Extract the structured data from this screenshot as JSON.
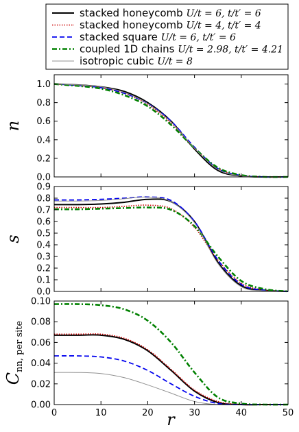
{
  "chart_data": {
    "type": "line",
    "legend": {
      "placement": "top",
      "entries": [
        {
          "text": "stacked honeycomb",
          "math": "U/t = 6, t/t′ = 6",
          "color": "#000000",
          "style": "solid"
        },
        {
          "text": "stacked honeycomb",
          "math": "U/t = 4, t/t′ = 4",
          "color": "#cc0000",
          "style": "dotted"
        },
        {
          "text": "stacked square",
          "math": "U/t = 6, t/t′ = 6",
          "color": "#0000ee",
          "style": "dashed"
        },
        {
          "text": "coupled 1D chains",
          "math": "U/t = 2.98, t/t′ = 4.21",
          "color": "#008000",
          "style": "dashdot"
        },
        {
          "text": "isotropic cubic",
          "math": "U/t = 8",
          "color": "#909090",
          "style": "thin"
        }
      ]
    },
    "xlabel": "r",
    "xlim": [
      0,
      50
    ],
    "xticks": [
      "0",
      "10",
      "20",
      "30",
      "40",
      "50"
    ],
    "panels": [
      {
        "ylabel": "n",
        "ylabel_sub": "",
        "ylim": [
          0,
          1.1
        ],
        "yticks": [
          "0.0",
          "0.2",
          "0.4",
          "0.6",
          "0.8",
          "1.0"
        ],
        "x": [
          0,
          5,
          10,
          15,
          20,
          25,
          30,
          35,
          40,
          45,
          50
        ],
        "series": [
          {
            "name": "stacked honeycomb U/t=6, t/t'=6",
            "values": [
              1.0,
              0.99,
              0.97,
              0.92,
              0.8,
              0.6,
              0.3,
              0.07,
              0.01,
              0.0,
              0.0
            ]
          },
          {
            "name": "stacked honeycomb U/t=4, t/t'=4",
            "values": [
              1.0,
              0.985,
              0.96,
              0.9,
              0.78,
              0.58,
              0.31,
              0.09,
              0.015,
              0.0,
              0.0
            ]
          },
          {
            "name": "stacked square U/t=6, t/t'=6",
            "values": [
              1.0,
              0.985,
              0.96,
              0.9,
              0.79,
              0.6,
              0.32,
              0.09,
              0.015,
              0.0,
              0.0
            ]
          },
          {
            "name": "coupled 1D chains U/t=2.98, t/t'=4.21",
            "values": [
              1.0,
              0.98,
              0.95,
              0.88,
              0.76,
              0.56,
              0.31,
              0.1,
              0.02,
              0.0,
              0.0
            ]
          },
          {
            "name": "isotropic cubic U/t=8",
            "values": [
              1.0,
              0.99,
              0.97,
              0.91,
              0.79,
              0.59,
              0.31,
              0.08,
              0.01,
              0.0,
              0.0
            ]
          }
        ]
      },
      {
        "ylabel": "s",
        "ylabel_sub": "",
        "ylim": [
          0,
          0.9
        ],
        "yticks": [
          "0.0",
          "0.1",
          "0.2",
          "0.3",
          "0.4",
          "0.5",
          "0.6",
          "0.7",
          "0.8",
          "0.9"
        ],
        "x": [
          0,
          5,
          10,
          15,
          20,
          25,
          30,
          35,
          40,
          45,
          50
        ],
        "series": [
          {
            "name": "stacked honeycomb U/t=6, t/t'=6",
            "values": [
              0.745,
              0.745,
              0.75,
              0.765,
              0.79,
              0.77,
              0.6,
              0.25,
              0.05,
              0.01,
              0.0
            ]
          },
          {
            "name": "stacked honeycomb U/t=4, t/t'=4",
            "values": [
              0.72,
              0.72,
              0.72,
              0.73,
              0.74,
              0.71,
              0.55,
              0.27,
              0.07,
              0.01,
              0.0
            ]
          },
          {
            "name": "stacked square U/t=6, t/t'=6",
            "values": [
              0.785,
              0.785,
              0.79,
              0.8,
              0.81,
              0.78,
              0.6,
              0.27,
              0.06,
              0.01,
              0.0
            ]
          },
          {
            "name": "coupled 1D chains U/t=2.98, t/t'=4.21",
            "values": [
              0.705,
              0.705,
              0.71,
              0.715,
              0.72,
              0.7,
              0.56,
              0.3,
              0.09,
              0.02,
              0.0
            ]
          },
          {
            "name": "isotropic cubic U/t=8",
            "values": [
              0.775,
              0.775,
              0.78,
              0.795,
              0.81,
              0.77,
              0.59,
              0.24,
              0.04,
              0.005,
              0.0
            ]
          }
        ]
      },
      {
        "ylabel": "C",
        "ylabel_sub": "nn, per site",
        "ylim": [
          0,
          0.1
        ],
        "yticks": [
          "0.00",
          "0.02",
          "0.04",
          "0.06",
          "0.08",
          "0.10"
        ],
        "x": [
          0,
          5,
          10,
          15,
          20,
          25,
          30,
          35,
          40,
          45,
          50
        ],
        "series": [
          {
            "name": "stacked honeycomb U/t=6, t/t'=6",
            "values": [
              0.067,
              0.067,
              0.067,
              0.063,
              0.052,
              0.033,
              0.013,
              0.002,
              0.0,
              0.0,
              0.0
            ]
          },
          {
            "name": "stacked honeycomb U/t=4, t/t'=4",
            "values": [
              0.068,
              0.068,
              0.068,
              0.064,
              0.053,
              0.034,
              0.014,
              0.003,
              0.0,
              0.0,
              0.0
            ]
          },
          {
            "name": "stacked square U/t=6, t/t'=6",
            "values": [
              0.047,
              0.047,
              0.046,
              0.042,
              0.033,
              0.02,
              0.008,
              0.001,
              0.0,
              0.0,
              0.0
            ]
          },
          {
            "name": "coupled 1D chains U/t=2.98, t/t'=4.21",
            "values": [
              0.097,
              0.097,
              0.096,
              0.092,
              0.081,
              0.06,
              0.031,
              0.007,
              0.001,
              0.0,
              0.0
            ]
          },
          {
            "name": "isotropic cubic U/t=8",
            "values": [
              0.031,
              0.031,
              0.03,
              0.026,
              0.019,
              0.011,
              0.003,
              0.0,
              0.0,
              0.0,
              0.0
            ]
          }
        ]
      }
    ]
  }
}
